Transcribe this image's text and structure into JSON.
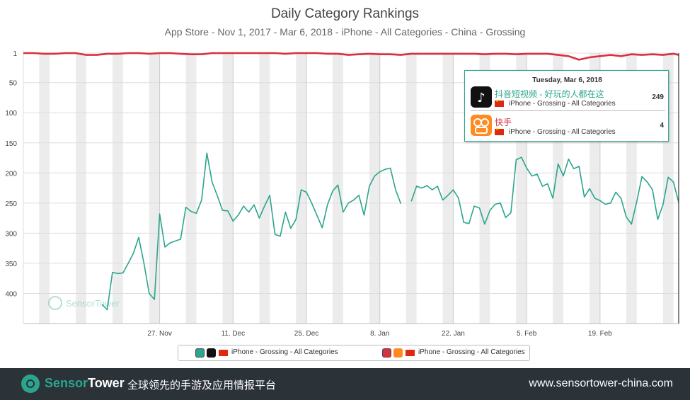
{
  "title": "Daily Category Rankings",
  "subtitle": "App Store - Nov 1, 2017 - Mar 6, 2018 - iPhone - All Categories - China - Grossing",
  "tooltip": {
    "date": "Tuesday, Mar 6, 2018",
    "rows": [
      {
        "app": "抖音短视频 - 好玩的人都在这",
        "sub": "iPhone - Grossing - All Categories",
        "rank": "249"
      },
      {
        "app": "快手",
        "sub": "iPhone - Grossing - All Categories",
        "rank": "4"
      }
    ]
  },
  "legend": [
    {
      "label": "iPhone - Grossing - All Categories",
      "color": "#2ba58e",
      "icon": "douyin-icon"
    },
    {
      "label": "iPhone - Grossing - All Categories",
      "color": "#d9303f",
      "icon": "kuaishou-icon"
    }
  ],
  "watermark": "SensorTower",
  "footer": {
    "brand_a": "Sensor",
    "brand_b": "Tower",
    "tagline": "全球领先的手游及应用情报平台",
    "url": "www.sensortower-china.com"
  },
  "chart_data": {
    "type": "line",
    "title": "Daily Category Rankings",
    "subtitle": "App Store - Nov 1, 2017 - Mar 6, 2018 - iPhone - All Categories - China - Grossing",
    "y_ticks": [
      "1",
      "50",
      "100",
      "150",
      "200",
      "250",
      "300",
      "350",
      "400"
    ],
    "y_tick_values": [
      1,
      50,
      100,
      150,
      200,
      250,
      300,
      350,
      400
    ],
    "ylim": [
      1,
      450
    ],
    "y_reversed": true,
    "x_start": "2017-11-01",
    "x_end": "2018-03-06",
    "x_ticks": [
      "27. Nov",
      "11. Dec",
      "25. Dec",
      "8. Jan",
      "22. Jan",
      "5. Feb",
      "19. Feb"
    ],
    "x_tick_dates": [
      "2017-11-27",
      "2017-12-11",
      "2017-12-25",
      "2018-01-08",
      "2018-01-22",
      "2018-02-05",
      "2018-02-19"
    ],
    "grid": true,
    "weekend_bands": true,
    "legend_position": "bottom",
    "series": [
      {
        "color": "#2ba58e",
        "points": [
          [
            "2017-11-16",
            418
          ],
          [
            "2017-11-17",
            427
          ],
          [
            "2017-11-18",
            365
          ],
          [
            "2017-11-19",
            367
          ],
          [
            "2017-11-20",
            366
          ],
          [
            "2017-11-21",
            350
          ],
          [
            "2017-11-22",
            333
          ],
          [
            "2017-11-23",
            307
          ],
          [
            "2017-11-24",
            350
          ],
          [
            "2017-11-25",
            400
          ],
          [
            "2017-11-26",
            410
          ],
          [
            "2017-11-27",
            268
          ],
          [
            "2017-11-28",
            323
          ],
          [
            "2017-11-29",
            316
          ],
          [
            "2017-11-30",
            313
          ],
          [
            "2017-12-01",
            310
          ],
          [
            "2017-12-02",
            257
          ],
          [
            "2017-12-03",
            264
          ],
          [
            "2017-12-04",
            267
          ],
          [
            "2017-12-05",
            245
          ],
          [
            "2017-12-06",
            167
          ],
          [
            "2017-12-07",
            215
          ],
          [
            "2017-12-08",
            238
          ],
          [
            "2017-12-09",
            262
          ],
          [
            "2017-12-10",
            263
          ],
          [
            "2017-12-11",
            280
          ],
          [
            "2017-12-12",
            270
          ],
          [
            "2017-12-13",
            255
          ],
          [
            "2017-12-14",
            265
          ],
          [
            "2017-12-15",
            253
          ],
          [
            "2017-12-16",
            275
          ],
          [
            "2017-12-17",
            255
          ],
          [
            "2017-12-18",
            237
          ],
          [
            "2017-12-19",
            302
          ],
          [
            "2017-12-20",
            305
          ],
          [
            "2017-12-21",
            265
          ],
          [
            "2017-12-22",
            292
          ],
          [
            "2017-12-23",
            277
          ],
          [
            "2017-12-24",
            228
          ],
          [
            "2017-12-25",
            232
          ],
          [
            "2017-12-26",
            250
          ],
          [
            "2017-12-27",
            270
          ],
          [
            "2017-12-28",
            291
          ],
          [
            "2017-12-29",
            253
          ],
          [
            "2017-12-30",
            230
          ],
          [
            "2017-12-31",
            220
          ],
          [
            "2018-01-01",
            265
          ],
          [
            "2018-01-02",
            250
          ],
          [
            "2018-01-03",
            245
          ],
          [
            "2018-01-04",
            237
          ],
          [
            "2018-01-05",
            270
          ],
          [
            "2018-01-06",
            222
          ],
          [
            "2018-01-07",
            205
          ],
          [
            "2018-01-08",
            198
          ],
          [
            "2018-01-09",
            194
          ],
          [
            "2018-01-10",
            192
          ],
          [
            "2018-01-11",
            228
          ],
          [
            "2018-01-12",
            251
          ],
          [
            "2018-01-14",
            247
          ],
          [
            "2018-01-15",
            222
          ],
          [
            "2018-01-16",
            225
          ],
          [
            "2018-01-17",
            221
          ],
          [
            "2018-01-18",
            228
          ],
          [
            "2018-01-19",
            222
          ],
          [
            "2018-01-20",
            245
          ],
          [
            "2018-01-21",
            237
          ],
          [
            "2018-01-22",
            228
          ],
          [
            "2018-01-23",
            242
          ],
          [
            "2018-01-24",
            282
          ],
          [
            "2018-01-25",
            284
          ],
          [
            "2018-01-26",
            255
          ],
          [
            "2018-01-27",
            258
          ],
          [
            "2018-01-28",
            285
          ],
          [
            "2018-01-29",
            262
          ],
          [
            "2018-01-30",
            252
          ],
          [
            "2018-01-31",
            250
          ],
          [
            "2018-02-01",
            274
          ],
          [
            "2018-02-02",
            266
          ],
          [
            "2018-02-03",
            178
          ],
          [
            "2018-02-04",
            174
          ],
          [
            "2018-02-05",
            192
          ],
          [
            "2018-02-06",
            205
          ],
          [
            "2018-02-07",
            202
          ],
          [
            "2018-02-08",
            222
          ],
          [
            "2018-02-09",
            218
          ],
          [
            "2018-02-10",
            242
          ],
          [
            "2018-02-11",
            185
          ],
          [
            "2018-02-12",
            205
          ],
          [
            "2018-02-13",
            177
          ],
          [
            "2018-02-14",
            193
          ],
          [
            "2018-02-15",
            189
          ],
          [
            "2018-02-16",
            240
          ],
          [
            "2018-02-17",
            226
          ],
          [
            "2018-02-18",
            242
          ],
          [
            "2018-02-19",
            246
          ],
          [
            "2018-02-20",
            252
          ],
          [
            "2018-02-21",
            250
          ],
          [
            "2018-02-22",
            232
          ],
          [
            "2018-02-23",
            242
          ],
          [
            "2018-02-24",
            273
          ],
          [
            "2018-02-25",
            285
          ],
          [
            "2018-02-26",
            248
          ],
          [
            "2018-02-27",
            206
          ],
          [
            "2018-02-28",
            215
          ],
          [
            "2018-03-01",
            228
          ],
          [
            "2018-03-02",
            277
          ],
          [
            "2018-03-03",
            253
          ],
          [
            "2018-03-04",
            207
          ],
          [
            "2018-03-05",
            215
          ],
          [
            "2018-03-06",
            249
          ]
        ]
      },
      {
        "color": "#d9303f",
        "points": [
          [
            "2017-11-01",
            1
          ],
          [
            "2017-11-03",
            1
          ],
          [
            "2017-11-05",
            2
          ],
          [
            "2017-11-07",
            2
          ],
          [
            "2017-11-09",
            1
          ],
          [
            "2017-11-11",
            1
          ],
          [
            "2017-11-13",
            4
          ],
          [
            "2017-11-15",
            4
          ],
          [
            "2017-11-17",
            2
          ],
          [
            "2017-11-19",
            2
          ],
          [
            "2017-11-21",
            1
          ],
          [
            "2017-11-23",
            1
          ],
          [
            "2017-11-25",
            2
          ],
          [
            "2017-11-27",
            1
          ],
          [
            "2017-11-29",
            1
          ],
          [
            "2017-12-01",
            2
          ],
          [
            "2017-12-03",
            3
          ],
          [
            "2017-12-05",
            3
          ],
          [
            "2017-12-07",
            1
          ],
          [
            "2017-12-09",
            1
          ],
          [
            "2017-12-11",
            1
          ],
          [
            "2017-12-13",
            1
          ],
          [
            "2017-12-15",
            1
          ],
          [
            "2017-12-17",
            1
          ],
          [
            "2017-12-19",
            1
          ],
          [
            "2017-12-21",
            2
          ],
          [
            "2017-12-23",
            1
          ],
          [
            "2017-12-25",
            1
          ],
          [
            "2017-12-27",
            1
          ],
          [
            "2017-12-29",
            2
          ],
          [
            "2017-12-31",
            2
          ],
          [
            "2018-01-02",
            4
          ],
          [
            "2018-01-04",
            3
          ],
          [
            "2018-01-06",
            2
          ],
          [
            "2018-01-08",
            3
          ],
          [
            "2018-01-10",
            3
          ],
          [
            "2018-01-12",
            4
          ],
          [
            "2018-01-14",
            2
          ],
          [
            "2018-01-16",
            2
          ],
          [
            "2018-01-18",
            2
          ],
          [
            "2018-01-20",
            2
          ],
          [
            "2018-01-22",
            2
          ],
          [
            "2018-01-24",
            2
          ],
          [
            "2018-01-26",
            2
          ],
          [
            "2018-01-28",
            3
          ],
          [
            "2018-01-30",
            2
          ],
          [
            "2018-02-01",
            2
          ],
          [
            "2018-02-03",
            3
          ],
          [
            "2018-02-05",
            2
          ],
          [
            "2018-02-07",
            2
          ],
          [
            "2018-02-09",
            2
          ],
          [
            "2018-02-11",
            4
          ],
          [
            "2018-02-13",
            6
          ],
          [
            "2018-02-15",
            12
          ],
          [
            "2018-02-17",
            8
          ],
          [
            "2018-02-19",
            6
          ],
          [
            "2018-02-21",
            4
          ],
          [
            "2018-02-23",
            6
          ],
          [
            "2018-02-25",
            3
          ],
          [
            "2018-02-27",
            4
          ],
          [
            "2018-03-01",
            3
          ],
          [
            "2018-03-03",
            4
          ],
          [
            "2018-03-05",
            2
          ],
          [
            "2018-03-06",
            4
          ]
        ]
      }
    ]
  }
}
